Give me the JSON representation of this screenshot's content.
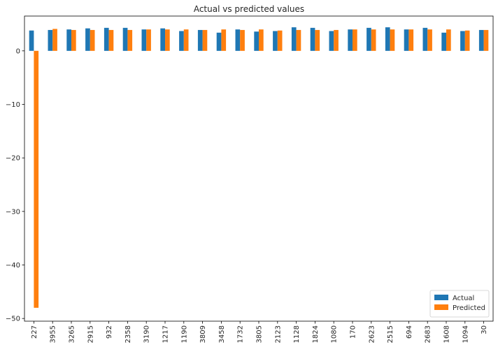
{
  "chart_data": {
    "type": "bar",
    "title": "Actual vs predicted values",
    "xlabel": "",
    "ylabel": "",
    "ylim": [
      -50.5,
      6.5
    ],
    "yticks": [
      0,
      -10,
      -20,
      -30,
      -40,
      -50
    ],
    "categories": [
      "227",
      "3955",
      "3265",
      "2915",
      "932",
      "2358",
      "3190",
      "1217",
      "1190",
      "3809",
      "3458",
      "1732",
      "3805",
      "2123",
      "1128",
      "1824",
      "1080",
      "170",
      "2623",
      "2515",
      "694",
      "2683",
      "1608",
      "1094",
      "30"
    ],
    "series": [
      {
        "name": "Actual",
        "color": "#1f77b4",
        "values": [
          3.8,
          3.9,
          4.0,
          4.2,
          4.3,
          4.3,
          4.0,
          4.2,
          3.7,
          3.9,
          3.4,
          4.0,
          3.6,
          3.7,
          4.4,
          4.3,
          3.7,
          4.0,
          4.3,
          4.4,
          4.0,
          4.3,
          3.4,
          3.7,
          3.9
        ]
      },
      {
        "name": "Predicted",
        "color": "#ff7f0e",
        "values": [
          -48.0,
          4.1,
          3.9,
          3.9,
          3.9,
          3.9,
          4.0,
          4.0,
          4.0,
          3.9,
          4.0,
          3.9,
          4.0,
          3.8,
          3.9,
          3.9,
          3.9,
          4.0,
          4.0,
          4.0,
          4.0,
          4.0,
          4.0,
          3.8,
          3.9
        ]
      }
    ],
    "grid": false,
    "legend_position": "bottom-right"
  }
}
